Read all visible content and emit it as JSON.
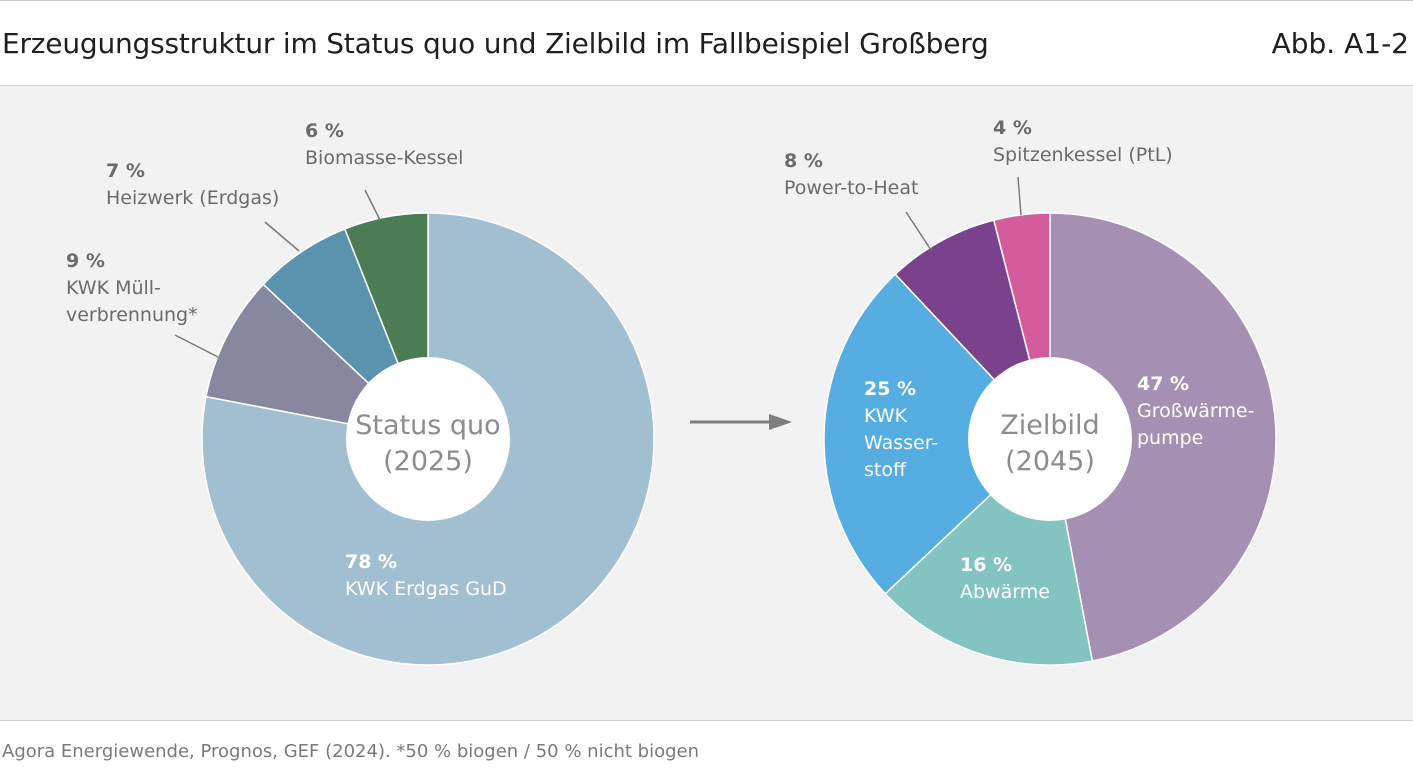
{
  "header": {
    "title": "Erzeugungsstruktur im Status quo und Zielbild im Fallbeispiel Großberg",
    "figure_id": "Abb. A1-2"
  },
  "footer": {
    "source": "Agora Energiewende, Prognos, GEF (2024). *50 % biogen / 50 % nicht biogen"
  },
  "colors": {
    "panel_bg": "#f2f2f2",
    "arrow": "#7f7f7f",
    "outside_label": "#6b6b6b",
    "inside_label": "#ffffff"
  },
  "chart_data": [
    {
      "type": "pie",
      "title": "Status quo",
      "subtitle": "(2025)",
      "unit": "%",
      "slices": [
        {
          "label_lines": [
            "KWK Erdgas GuD"
          ],
          "value": 78,
          "value_text": "78 %",
          "color": "#a2bfd1",
          "label_position": "inside"
        },
        {
          "label_lines": [
            "KWK Müll-",
            "verbrennung*"
          ],
          "value": 9,
          "value_text": "9 %",
          "color": "#87879f",
          "label_position": "outside"
        },
        {
          "label_lines": [
            "Heizwerk (Erdgas)"
          ],
          "value": 7,
          "value_text": "7 %",
          "color": "#5b92ae",
          "label_position": "outside"
        },
        {
          "label_lines": [
            "Biomasse-Kessel"
          ],
          "value": 6,
          "value_text": "6 %",
          "color": "#4c7c54",
          "label_position": "outside"
        }
      ]
    },
    {
      "type": "pie",
      "title": "Zielbild",
      "subtitle": "(2045)",
      "unit": "%",
      "slices": [
        {
          "label_lines": [
            "Großwärme-",
            "pumpe"
          ],
          "value": 47,
          "value_text": "47 %",
          "color": "#a590b4",
          "label_position": "inside"
        },
        {
          "label_lines": [
            "Abwärme"
          ],
          "value": 16,
          "value_text": "16 %",
          "color": "#83c3c2",
          "label_position": "inside"
        },
        {
          "label_lines": [
            "KWK",
            "Wasser-",
            "stoff"
          ],
          "value": 25,
          "value_text": "25 %",
          "color": "#56ade2",
          "label_position": "inside"
        },
        {
          "label_lines": [
            "Power-to-Heat"
          ],
          "value": 8,
          "value_text": "8 %",
          "color": "#7a418c",
          "label_position": "outside"
        },
        {
          "label_lines": [
            "Spitzenkessel (PtL)"
          ],
          "value": 4,
          "value_text": "4 %",
          "color": "#d45b9c",
          "label_position": "outside"
        }
      ]
    }
  ]
}
